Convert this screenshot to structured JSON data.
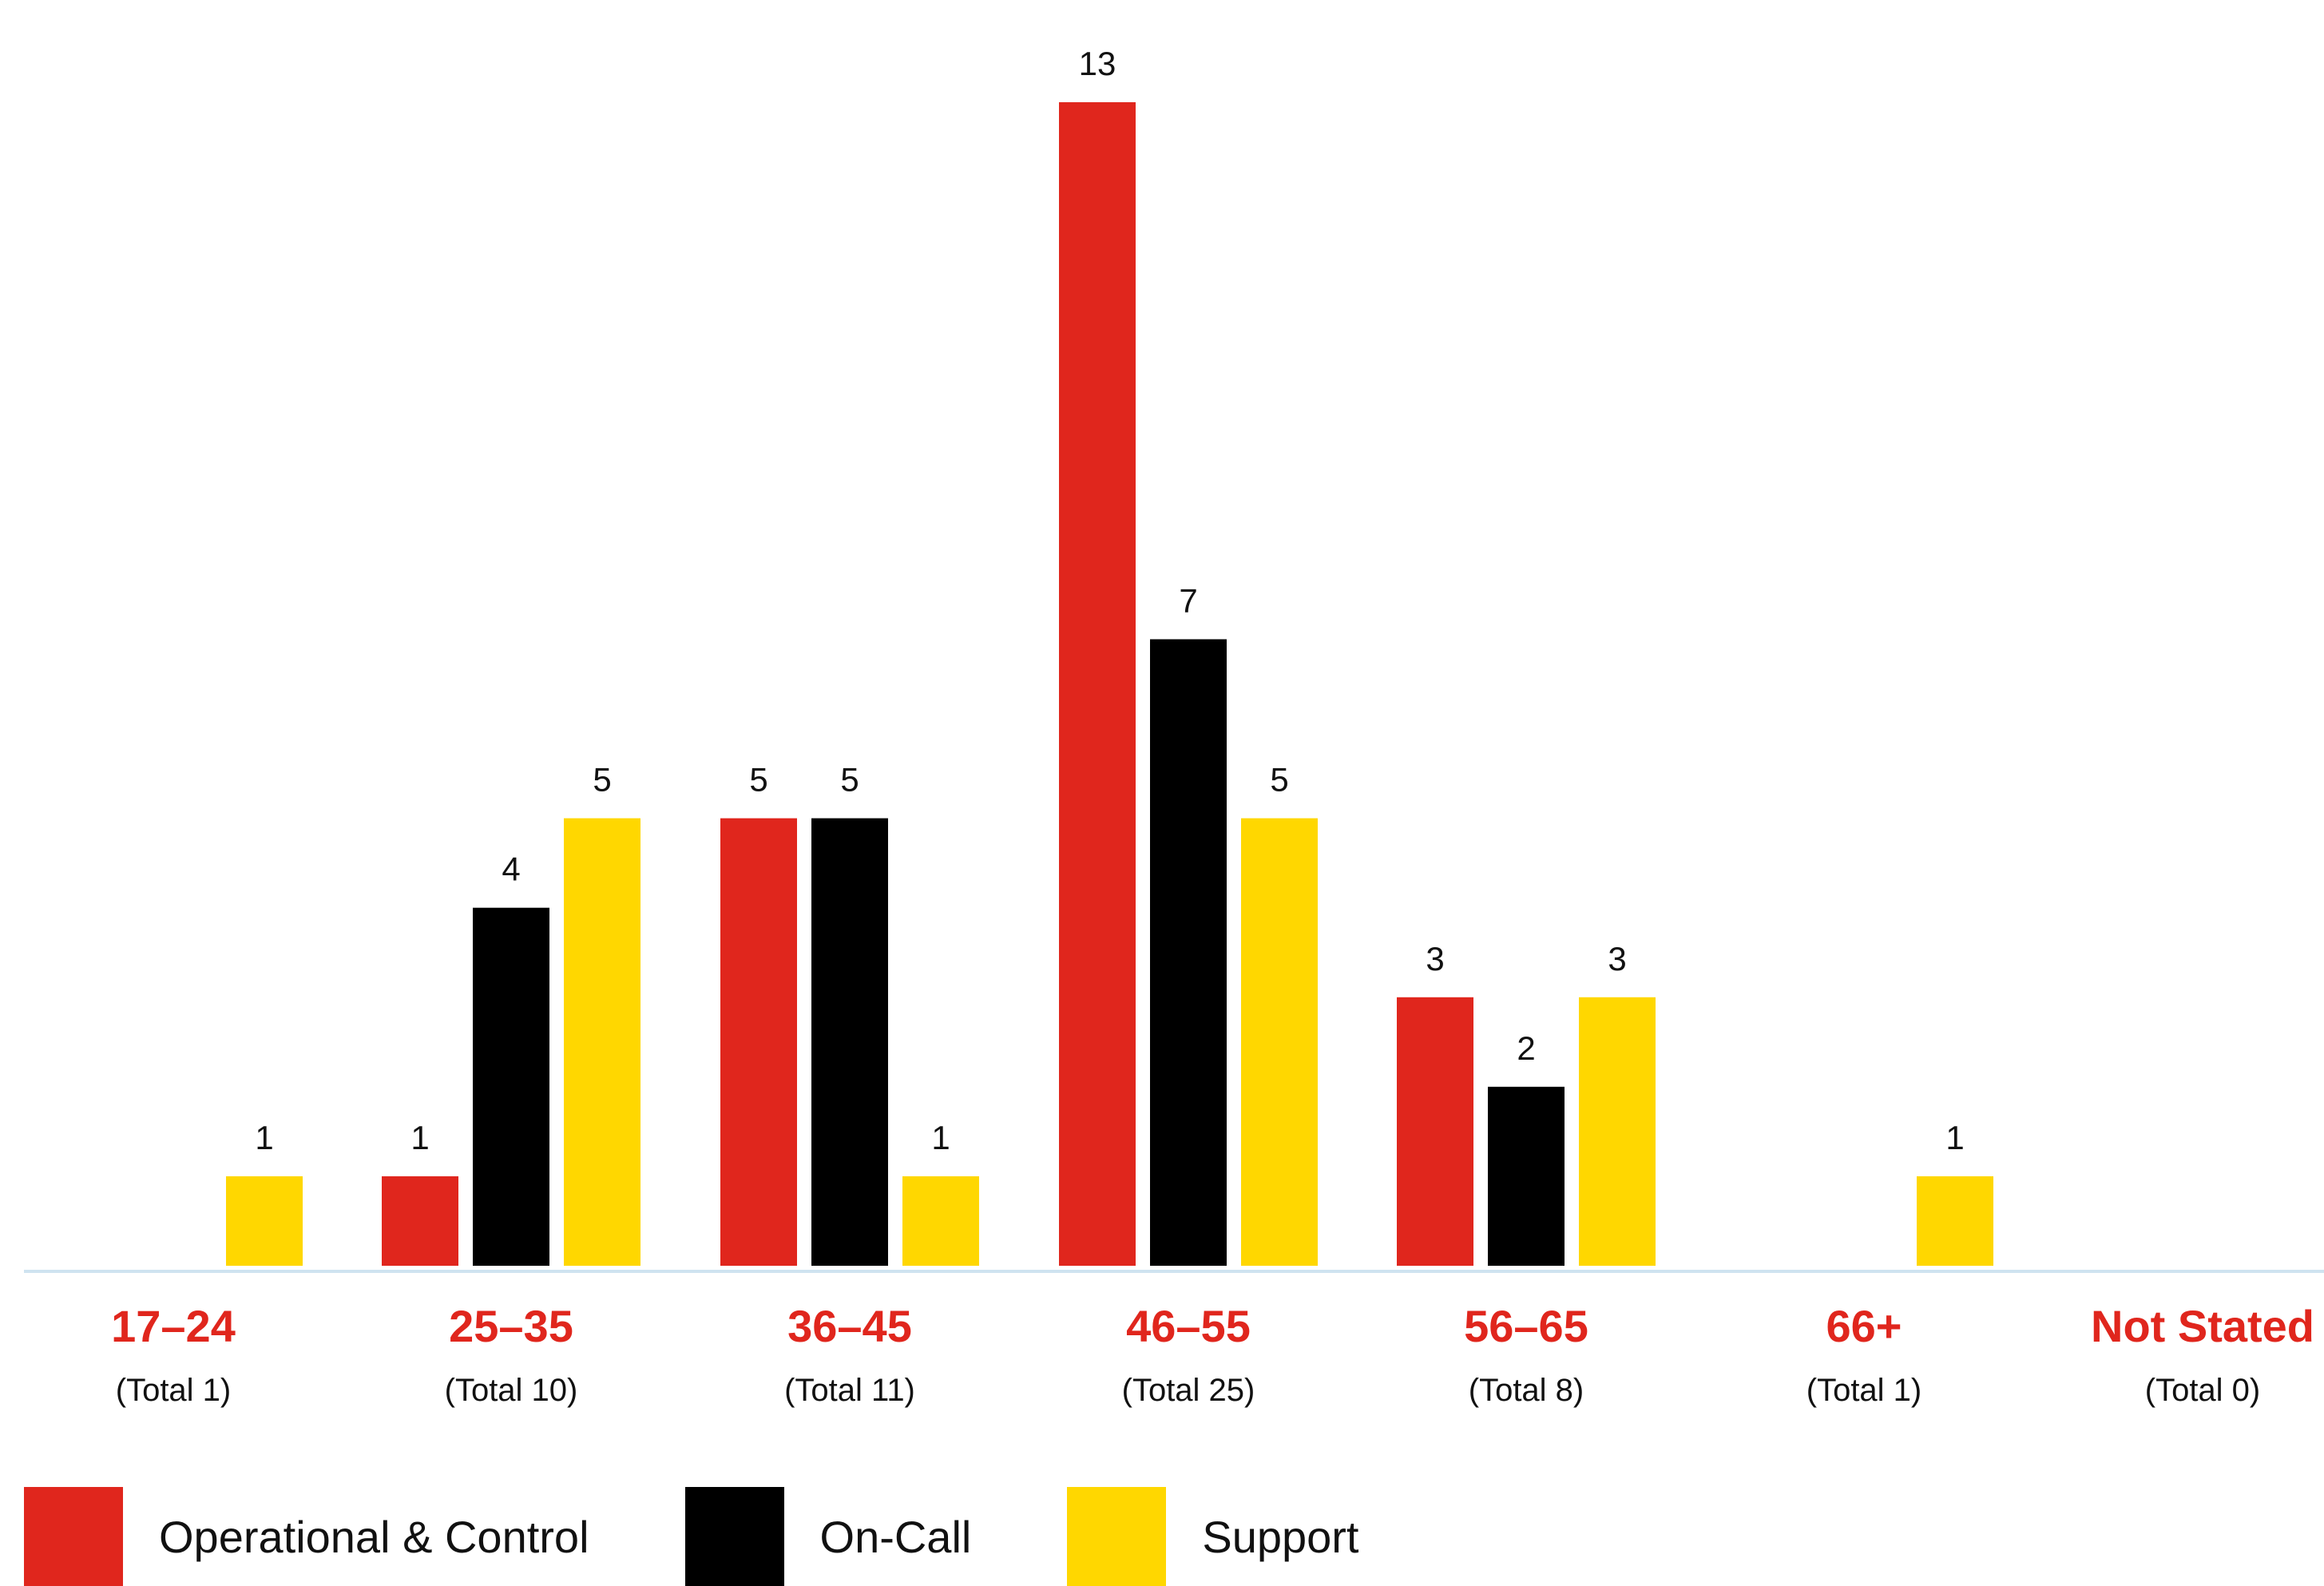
{
  "chart_data": {
    "type": "bar",
    "categories": [
      "17–24",
      "25–35",
      "36–45",
      "46–55",
      "56–65",
      "66+",
      "Not Stated"
    ],
    "totals": [
      "(Total 1)",
      "(Total 10)",
      "(Total 11)",
      "(Total 25)",
      "(Total 8)",
      "(Total 1)",
      "(Total 0)"
    ],
    "series": [
      {
        "name": "Operational & Control",
        "color": "#e0261d",
        "values": [
          0,
          1,
          5,
          13,
          3,
          0,
          0
        ]
      },
      {
        "name": "On-Call",
        "color": "#000000",
        "values": [
          0,
          4,
          5,
          7,
          2,
          0,
          0
        ]
      },
      {
        "name": "Support",
        "color": "#ffd700",
        "values": [
          1,
          5,
          1,
          5,
          3,
          1,
          0
        ]
      }
    ],
    "title": "",
    "xlabel": "",
    "ylabel": "",
    "ylim": [
      0,
      13
    ],
    "grid": false,
    "legend_position": "bottom-left",
    "category_label_color": "#e0261d",
    "axis_color": "#cfe3f0"
  }
}
